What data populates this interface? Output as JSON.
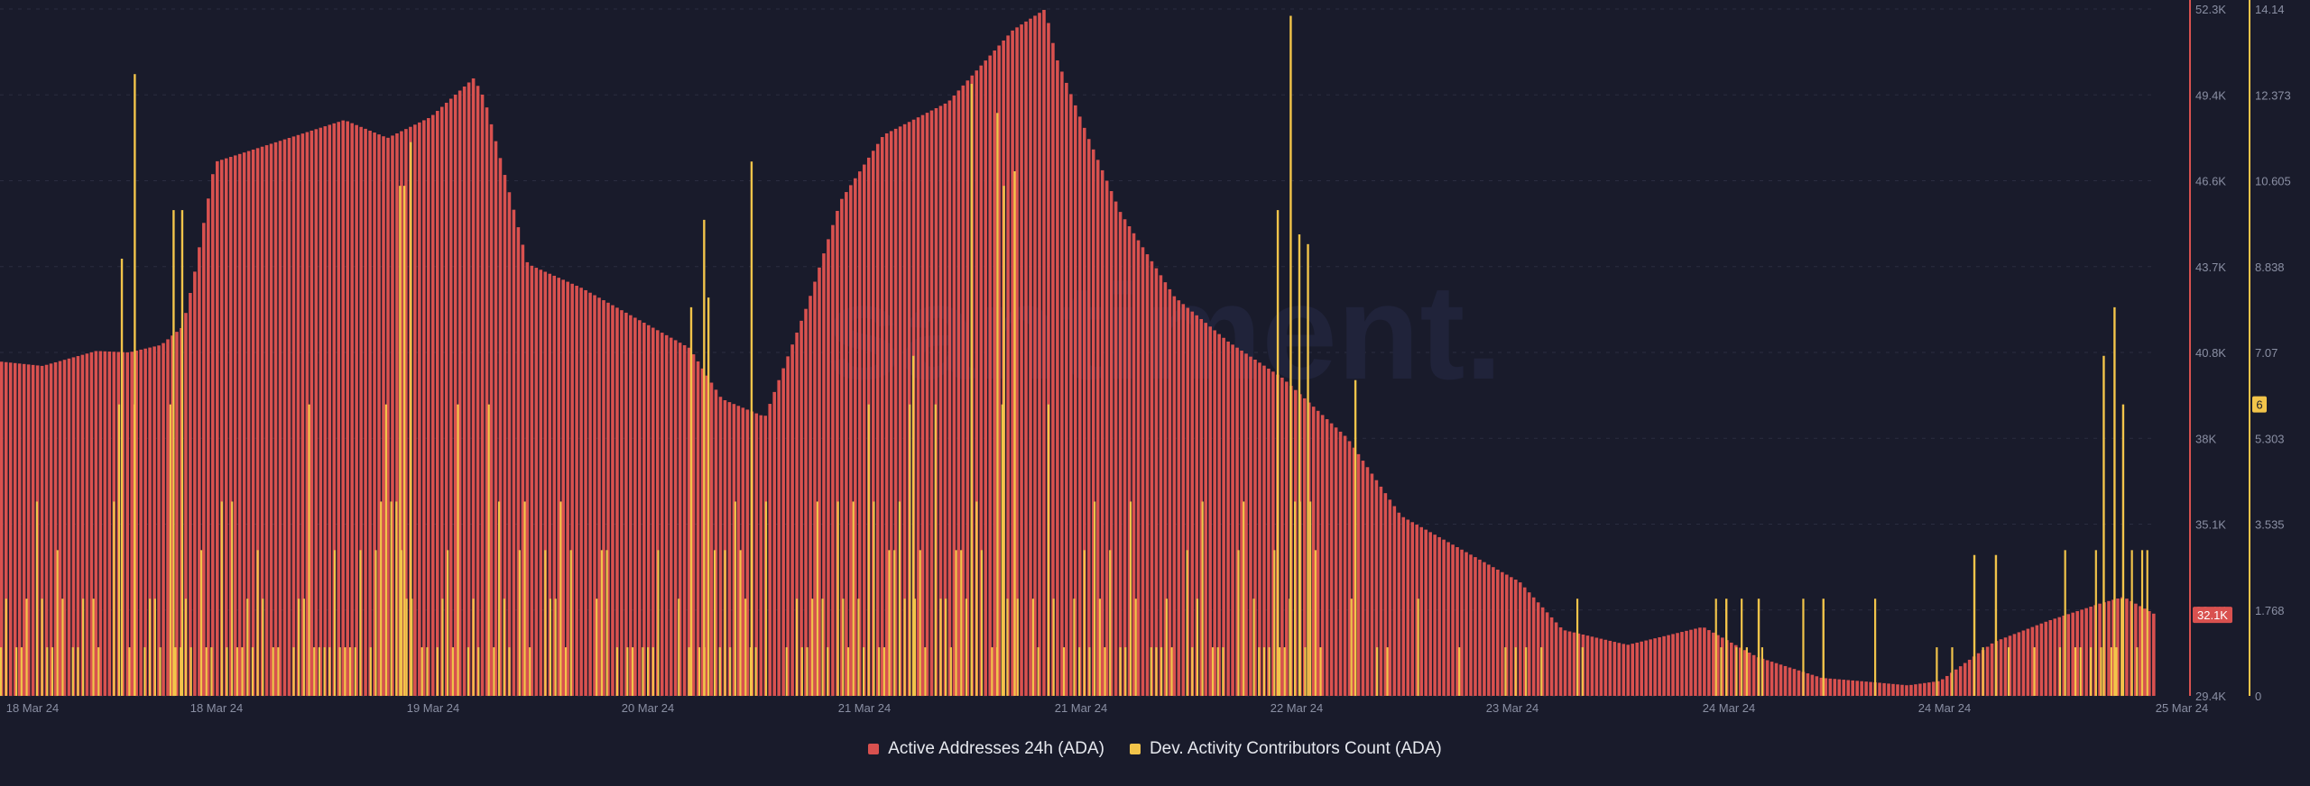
{
  "colors": {
    "background": "#191b2b",
    "grid": "#2a2d40",
    "axis_text": "#8a8fa3",
    "active_addresses": "#d9514f",
    "dev_activity": "#f2c44a"
  },
  "watermark": "santiment.",
  "chart_data": {
    "type": "bar",
    "x_ticks": [
      "18 Mar 24",
      "18 Mar 24",
      "19 Mar 24",
      "20 Mar 24",
      "21 Mar 24",
      "21 Mar 24",
      "22 Mar 24",
      "23 Mar 24",
      "24 Mar 24",
      "24 Mar 24",
      "25 Mar 24"
    ],
    "y_left": {
      "ticks": [
        "52.3K",
        "49.4K",
        "46.6K",
        "43.7K",
        "40.8K",
        "38K",
        "35.1K",
        "32.1K",
        "29.4K"
      ],
      "range": [
        29400,
        52300
      ],
      "current_label": "32.1K"
    },
    "y_right": {
      "ticks": [
        "14.14",
        "12.373",
        "10.605",
        "8.838",
        "7.07",
        "5.303",
        "3.535",
        "1.768",
        "0"
      ],
      "range": [
        0,
        14.14
      ],
      "current_label": "6"
    },
    "grid": true,
    "legend_position": "bottom-center",
    "series": [
      {
        "name": "Active Addresses 24h (ADA)",
        "axis": "left",
        "curve": [
          [
            0,
            40550
          ],
          [
            0.02,
            40400
          ],
          [
            0.045,
            40900
          ],
          [
            0.06,
            40850
          ],
          [
            0.075,
            41100
          ],
          [
            0.085,
            41700
          ],
          [
            0.09,
            43300
          ],
          [
            0.1,
            47200
          ],
          [
            0.13,
            47900
          ],
          [
            0.16,
            48600
          ],
          [
            0.18,
            48000
          ],
          [
            0.2,
            48700
          ],
          [
            0.22,
            50000
          ],
          [
            0.225,
            49300
          ],
          [
            0.235,
            46600
          ],
          [
            0.245,
            43800
          ],
          [
            0.27,
            43000
          ],
          [
            0.3,
            41800
          ],
          [
            0.32,
            41000
          ],
          [
            0.335,
            39300
          ],
          [
            0.355,
            38700
          ],
          [
            0.375,
            42500
          ],
          [
            0.39,
            45900
          ],
          [
            0.41,
            48100
          ],
          [
            0.44,
            49200
          ],
          [
            0.47,
            51600
          ],
          [
            0.485,
            52300
          ],
          [
            0.49,
            50700
          ],
          [
            0.505,
            48000
          ],
          [
            0.52,
            45500
          ],
          [
            0.545,
            42700
          ],
          [
            0.57,
            41200
          ],
          [
            0.595,
            40000
          ],
          [
            0.625,
            38000
          ],
          [
            0.65,
            35400
          ],
          [
            0.68,
            34200
          ],
          [
            0.705,
            33200
          ],
          [
            0.725,
            31600
          ],
          [
            0.755,
            31100
          ],
          [
            0.79,
            31700
          ],
          [
            0.815,
            30700
          ],
          [
            0.845,
            30000
          ],
          [
            0.87,
            29850
          ],
          [
            0.885,
            29750
          ],
          [
            0.9,
            29900
          ],
          [
            0.925,
            31200
          ],
          [
            0.95,
            31900
          ],
          [
            0.975,
            32500
          ],
          [
            0.985,
            32700
          ],
          [
            1,
            32100
          ]
        ]
      },
      {
        "name": "Dev. Activity Contributors Count (ADA)",
        "axis": "right",
        "spikes": [
          [
            0.056,
            9
          ],
          [
            0.062,
            12.8
          ],
          [
            0.08,
            10
          ],
          [
            0.084,
            10
          ],
          [
            0.185,
            10.5
          ],
          [
            0.187,
            10.5
          ],
          [
            0.19,
            11.4
          ],
          [
            0.32,
            8
          ],
          [
            0.326,
            9.8
          ],
          [
            0.328,
            8.2
          ],
          [
            0.348,
            11
          ],
          [
            0.423,
            7
          ],
          [
            0.45,
            12.6
          ],
          [
            0.462,
            12
          ],
          [
            0.465,
            10.5
          ],
          [
            0.47,
            10.8
          ],
          [
            0.592,
            10
          ],
          [
            0.598,
            14
          ],
          [
            0.602,
            9.5
          ],
          [
            0.606,
            9.3
          ],
          [
            0.628,
            6.5
          ],
          [
            0.8,
            2
          ],
          [
            0.815,
            2
          ],
          [
            0.845,
            2
          ],
          [
            0.915,
            2.9
          ],
          [
            0.925,
            2.9
          ],
          [
            0.975,
            7
          ],
          [
            0.98,
            8
          ],
          [
            0.984,
            6
          ]
        ]
      }
    ]
  }
}
